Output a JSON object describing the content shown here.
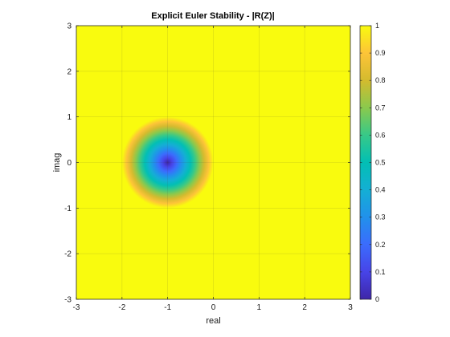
{
  "chart_data": {
    "type": "heatmap",
    "title": "Explicit Euler Stability - |R(Z)|",
    "xlabel": "real",
    "ylabel": "imag",
    "xlim": [
      -3,
      3
    ],
    "ylim": [
      -3,
      3
    ],
    "x_ticks": [
      "-3",
      "-2",
      "-1",
      "0",
      "1",
      "2",
      "3"
    ],
    "y_ticks": [
      "3",
      "2",
      "1",
      "0",
      "-1",
      "-2",
      "-3"
    ],
    "function": "|1 + z|, clipped at 1",
    "stable_region_center": [
      -1,
      0
    ],
    "stable_region_radius": 1,
    "color_limits": [
      0,
      1
    ],
    "colormap": "parula",
    "colorbar_ticks": [
      "1",
      "0.9",
      "0.8",
      "0.7",
      "0.6",
      "0.5",
      "0.4",
      "0.3",
      "0.2",
      "0.1",
      "0"
    ],
    "grid": true
  },
  "colors": {
    "background": "#ffffff",
    "saturated": "#f9fb0e",
    "grid": "#3c3c3c",
    "axis": "#262626"
  }
}
